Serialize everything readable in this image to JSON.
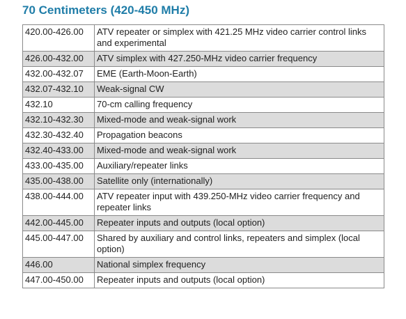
{
  "title": "70 Centimeters (420-450 MHz)",
  "rows": [
    {
      "freq": "420.00-426.00",
      "use": "ATV repeater or simplex with 421.25 MHz video carrier control links and experimental"
    },
    {
      "freq": "426.00-432.00",
      "use": "ATV simplex with 427.250-MHz video carrier frequency"
    },
    {
      "freq": "432.00-432.07",
      "use": "EME (Earth-Moon-Earth)"
    },
    {
      "freq": "432.07-432.10",
      "use": "Weak-signal CW"
    },
    {
      "freq": "432.10",
      "use": "70-cm calling frequency"
    },
    {
      "freq": "432.10-432.30",
      "use": "Mixed-mode and weak-signal work"
    },
    {
      "freq": "432.30-432.40",
      "use": "Propagation beacons"
    },
    {
      "freq": "432.40-433.00",
      "use": "Mixed-mode and weak-signal work"
    },
    {
      "freq": "433.00-435.00",
      "use": "Auxiliary/repeater links"
    },
    {
      "freq": "435.00-438.00",
      "use": "Satellite only (internationally)"
    },
    {
      "freq": "438.00-444.00",
      "use": "ATV repeater input with 439.250-MHz video carrier frequency and repeater links"
    },
    {
      "freq": "442.00-445.00",
      "use": "Repeater inputs and outputs (local option)"
    },
    {
      "freq": "445.00-447.00",
      "use": "Shared by auxiliary and control links, repeaters and simplex (local option)"
    },
    {
      "freq": "446.00",
      "use": "National simplex frequency"
    },
    {
      "freq": "447.00-450.00",
      "use": "Repeater inputs and outputs (local option)"
    }
  ],
  "colors": {
    "title": "#1f7da8",
    "shaded_row": "#dcdcdc",
    "border": "#8a8a8a"
  }
}
